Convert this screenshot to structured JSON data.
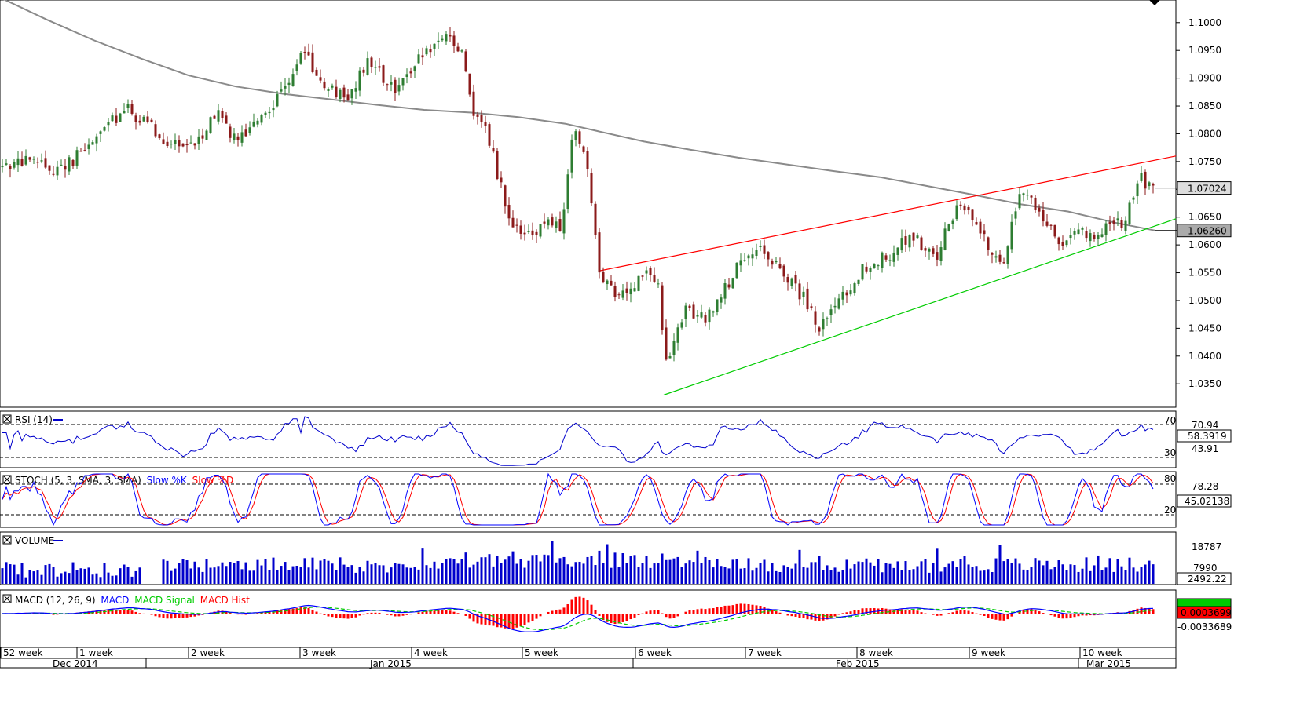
{
  "chart_data": {
    "type": "candlestick",
    "price": {
      "ylim": [
        1.0315,
        1.1035
      ],
      "ticks": [
        "1.1000",
        "1.0950",
        "1.0900",
        "1.0850",
        "1.0800",
        "1.0750",
        "1.0700",
        "1.0650",
        "1.0600",
        "1.0550",
        "1.0500",
        "1.0450",
        "1.0400",
        "1.0350"
      ],
      "last_price_label": "1.07024",
      "last_price": 1.07024,
      "ma_label": "1.06260",
      "ma_value": 1.0626,
      "ma_path": [
        [
          0,
          1.1045
        ],
        [
          60,
          1.1005
        ],
        [
          120,
          1.0968
        ],
        [
          180,
          1.0935
        ],
        [
          240,
          1.0905
        ],
        [
          300,
          1.0885
        ],
        [
          360,
          1.0872
        ],
        [
          420,
          1.0862
        ],
        [
          480,
          1.0852
        ],
        [
          540,
          1.0843
        ],
        [
          600,
          1.0838
        ],
        [
          660,
          1.083
        ],
        [
          720,
          1.0818
        ],
        [
          760,
          1.0805
        ],
        [
          820,
          1.0786
        ],
        [
          880,
          1.0771
        ],
        [
          940,
          1.0757
        ],
        [
          1000,
          1.0745
        ],
        [
          1060,
          1.0733
        ],
        [
          1120,
          1.0722
        ],
        [
          1180,
          1.0706
        ],
        [
          1240,
          1.069
        ],
        [
          1300,
          1.0673
        ],
        [
          1360,
          1.066
        ],
        [
          1420,
          1.064
        ],
        [
          1470,
          1.0626
        ]
      ],
      "resistance_line": {
        "from": [
          762,
          1.0553
        ],
        "to": [
          1497,
          1.076
        ],
        "color": "#ff0000"
      },
      "support_line": {
        "from": [
          845,
          1.033
        ],
        "to": [
          1497,
          1.0647
        ],
        "color": "#00cc00"
      },
      "candles_seed": 42,
      "anchors": [
        [
          0,
          1.074
        ],
        [
          40,
          1.075
        ],
        [
          70,
          1.0735
        ],
        [
          100,
          1.076
        ],
        [
          140,
          1.082
        ],
        [
          160,
          1.0845
        ],
        [
          175,
          1.083
        ],
        [
          210,
          1.079
        ],
        [
          245,
          1.0775
        ],
        [
          275,
          1.084
        ],
        [
          300,
          1.079
        ],
        [
          330,
          1.0825
        ],
        [
          360,
          1.088
        ],
        [
          385,
          1.095
        ],
        [
          410,
          1.089
        ],
        [
          440,
          1.086
        ],
        [
          470,
          1.093
        ],
        [
          500,
          1.088
        ],
        [
          530,
          1.093
        ],
        [
          560,
          1.0975
        ],
        [
          590,
          1.095
        ],
        [
          600,
          1.084
        ],
        [
          620,
          1.08
        ],
        [
          650,
          1.064
        ],
        [
          670,
          1.061
        ],
        [
          700,
          1.065
        ],
        [
          715,
          1.062
        ],
        [
          730,
          1.082
        ],
        [
          745,
          1.076
        ],
        [
          765,
          1.053
        ],
        [
          790,
          1.051
        ],
        [
          820,
          1.055
        ],
        [
          840,
          1.054
        ],
        [
          845,
          1.037
        ],
        [
          870,
          1.048
        ],
        [
          900,
          1.047
        ],
        [
          940,
          1.056
        ],
        [
          970,
          1.059
        ],
        [
          1000,
          1.055
        ],
        [
          1030,
          1.049
        ],
        [
          1040,
          1.044
        ],
        [
          1060,
          1.048
        ],
        [
          1100,
          1.056
        ],
        [
          1130,
          1.058
        ],
        [
          1160,
          1.062
        ],
        [
          1190,
          1.057
        ],
        [
          1220,
          1.068
        ],
        [
          1240,
          1.065
        ],
        [
          1265,
          1.058
        ],
        [
          1275,
          1.056
        ],
        [
          1300,
          1.07
        ],
        [
          1330,
          1.065
        ],
        [
          1350,
          1.059
        ],
        [
          1370,
          1.064
        ],
        [
          1395,
          1.06
        ],
        [
          1410,
          1.065
        ],
        [
          1430,
          1.064
        ],
        [
          1450,
          1.072
        ],
        [
          1470,
          1.0702
        ]
      ]
    },
    "rsi": {
      "title": "RSI (14)",
      "levels": [
        "70",
        "30"
      ],
      "axis_labels": [
        "70.94",
        "43.91"
      ],
      "current_label": "58.3919",
      "color": "#0000cc"
    },
    "stoch": {
      "title_prefix": "STOCH (5, 3, SMA, 3, SMA)",
      "k_label": "Slow %K",
      "d_label": "Slow %D",
      "levels": [
        "80",
        "20"
      ],
      "axis_label": "78.28",
      "current_label": "45.02138"
    },
    "volume": {
      "title": "VOLUME",
      "axis_labels": [
        "18787",
        "7990"
      ],
      "current_label": "2492.22",
      "color": "#0000cc"
    },
    "macd": {
      "title_prefix": "MACD (12, 26, 9)",
      "macd_label": "MACD",
      "signal_label": "MACD Signal",
      "hist_label": "MACD Hist",
      "current_label": "0.0003699",
      "axis_label": "-0.0033689"
    },
    "time_axis": {
      "weeks": [
        "52 week",
        "1 week",
        "2 week",
        "3 week",
        "4 week",
        "5 week",
        "6 week",
        "7 week",
        "8 week",
        "9 week",
        "10 week"
      ],
      "months": [
        "Dec 2014",
        "Jan 2015",
        "Feb 2015",
        "Mar 2015"
      ]
    },
    "colors": {
      "bull": "#2e7d32",
      "bear": "#8b1a1a",
      "ma": "#888888",
      "rsi": "#0000cc",
      "stoch_k": "#0000ff",
      "stoch_d": "#ff0000",
      "macd": "#0000ff",
      "signal": "#00cc00",
      "hist": "#ff0000"
    }
  }
}
